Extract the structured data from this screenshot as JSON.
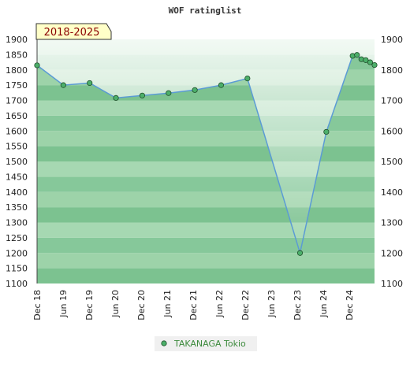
{
  "chart_data": {
    "type": "line",
    "title": "WOF ratinglist",
    "range_label": "2018-2025",
    "xlabel": "",
    "ylabel": "",
    "ylim": [
      1100,
      1900
    ],
    "ytick_step": 50,
    "y_right_ticks": [
      1100,
      1200,
      1300,
      1400,
      1500,
      1600,
      1700,
      1800,
      1900
    ],
    "xlim": [
      "2018-12",
      "2025-05"
    ],
    "x_tick_labels": [
      "Dec 18",
      "Jun 19",
      "Dec 19",
      "Jun 20",
      "Dec 20",
      "Jun 21",
      "Dec 21",
      "Jun 22",
      "Dec 22",
      "Jun 23",
      "Dec 23",
      "Jun 24",
      "Dec 24"
    ],
    "grid": true,
    "legend_position": "bottom-center",
    "series": [
      {
        "name": "TAKANAGA Tokio",
        "color": "#5b9bd5",
        "marker_color": "#4caf6a",
        "points": [
          {
            "x": "2018-12",
            "y": 1815
          },
          {
            "x": "2019-06",
            "y": 1750
          },
          {
            "x": "2019-12",
            "y": 1757
          },
          {
            "x": "2020-06",
            "y": 1708
          },
          {
            "x": "2020-12",
            "y": 1716
          },
          {
            "x": "2021-06",
            "y": 1724
          },
          {
            "x": "2021-12",
            "y": 1734
          },
          {
            "x": "2022-06",
            "y": 1750
          },
          {
            "x": "2022-12",
            "y": 1772
          },
          {
            "x": "2023-12",
            "y": 1200
          },
          {
            "x": "2024-06",
            "y": 1597
          },
          {
            "x": "2024-12",
            "y": 1846
          },
          {
            "x": "2025-01",
            "y": 1849
          },
          {
            "x": "2025-02",
            "y": 1835
          },
          {
            "x": "2025-03",
            "y": 1832
          },
          {
            "x": "2025-04",
            "y": 1825
          },
          {
            "x": "2025-05",
            "y": 1816
          }
        ]
      }
    ]
  },
  "legend": {
    "label": "TAKANAGA Tokio"
  }
}
